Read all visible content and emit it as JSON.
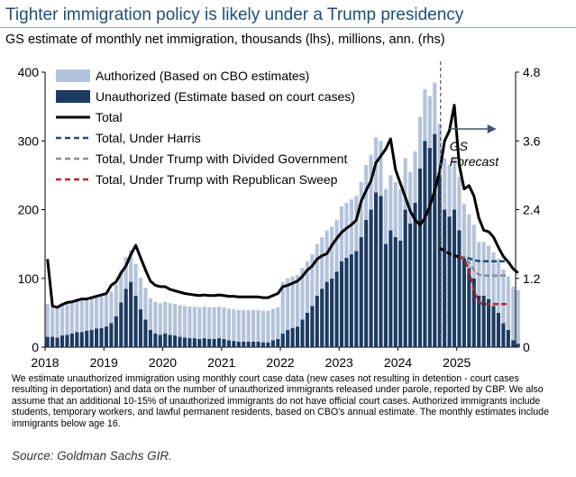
{
  "header": {
    "title": "Tighter immigration policy is likely under a Trump presidency",
    "subtitle": "GS estimate of monthly net immigration, thousands (lhs), millions, ann. (rhs)"
  },
  "footer": {
    "note": "We estimate unauthorized immigration using monthly court case data (new cases not resulting in detention - court cases resulting in deportation) and data on the number of unauthorized immigrants released under parole, reported by CBP. We also assume that an additional 10-15% of unauthorized immigrants do not have official court cases. Authorized immigrants include students, temporary workers, and lawful permanent residents, based on CBO's annual estimate. The monthly estimates include immigrants below age 16.",
    "source": "Source: Goldman Sachs GIR."
  },
  "chart_data": {
    "type": "bar",
    "title": "Tighter immigration policy is likely under a Trump presidency",
    "subtitle": "GS estimate of monthly net immigration, thousands (lhs), millions, ann. (rhs)",
    "x_start": "2018-01",
    "x_end": "2025-12",
    "xticks": [
      "2018",
      "2019",
      "2020",
      "2021",
      "2022",
      "2023",
      "2024",
      "2025"
    ],
    "ylim_left": [
      0,
      400
    ],
    "yticks_left": [
      "0",
      "100",
      "200",
      "300",
      "400"
    ],
    "ylim_right": [
      0,
      4.8
    ],
    "yticks_right": [
      "0",
      "1.2",
      "2.4",
      "3.6",
      "4.8"
    ],
    "annotation": {
      "text_line1": "GS",
      "text_line2": "Forecast",
      "date": "2024-09"
    },
    "colors": {
      "authorized": "#b4c3dc",
      "unauthorized": "#1c3a62",
      "total": "#000000",
      "harris": "#1f4e79",
      "trump_divided": "#8c8c8c",
      "trump_sweep": "#b02a2a"
    },
    "legend": [
      {
        "label": "Authorized (Based on CBO estimates)",
        "style": "fill",
        "color": "#b4c3dc"
      },
      {
        "label": "Unauthorized (Estimate based on court cases)",
        "style": "fill",
        "color": "#1c3a62"
      },
      {
        "label": "Total",
        "style": "line",
        "color": "#000000"
      },
      {
        "label": "Total, Under Harris",
        "style": "dash",
        "color": "#1f4e79"
      },
      {
        "label": "Total, Under Trump with Divided Government",
        "style": "dash",
        "color": "#8c8c8c"
      },
      {
        "label": "Total, Under Trump with Republican Sweep",
        "style": "dash",
        "color": "#b02a2a"
      }
    ],
    "bars_start": "2018-01",
    "authorized": [
      48,
      46,
      46,
      46,
      46,
      46,
      46,
      46,
      46,
      46,
      46,
      46,
      46,
      46,
      46,
      46,
      46,
      46,
      46,
      46,
      46,
      46,
      46,
      46,
      46,
      46,
      46,
      46,
      46,
      46,
      46,
      46,
      46,
      46,
      46,
      46,
      46,
      46,
      46,
      46,
      46,
      46,
      46,
      46,
      46,
      46,
      46,
      46,
      75,
      75,
      75,
      75,
      75,
      75,
      75,
      75,
      75,
      75,
      75,
      75,
      80,
      80,
      80,
      80,
      80,
      80,
      80,
      80,
      80,
      80,
      80,
      80,
      75,
      75,
      75,
      75,
      75,
      75,
      75,
      75,
      75,
      75,
      75,
      75,
      78,
      78,
      78,
      78,
      78,
      78,
      78,
      78,
      78,
      78,
      78,
      78,
      78
    ],
    "unauthorized": [
      15,
      15,
      14,
      17,
      18,
      20,
      22,
      22,
      24,
      25,
      27,
      28,
      30,
      35,
      45,
      65,
      85,
      95,
      75,
      55,
      40,
      25,
      20,
      18,
      20,
      18,
      17,
      15,
      14,
      13,
      13,
      12,
      13,
      12,
      12,
      13,
      12,
      10,
      9,
      8,
      8,
      8,
      8,
      8,
      7,
      7,
      10,
      12,
      20,
      25,
      28,
      30,
      40,
      50,
      60,
      75,
      85,
      95,
      100,
      110,
      125,
      130,
      135,
      140,
      160,
      185,
      200,
      225,
      220,
      150,
      170,
      160,
      155,
      200,
      180,
      210,
      260,
      300,
      290,
      310,
      250,
      200,
      190,
      200,
      170,
      130,
      115,
      100,
      75,
      75,
      70,
      60,
      50,
      35,
      25,
      10,
      5
    ],
    "total_monthly": [
      128,
      60,
      58,
      62,
      65,
      66,
      68,
      70,
      70,
      72,
      74,
      76,
      78,
      90,
      95,
      108,
      118,
      135,
      148,
      130,
      112,
      96,
      90,
      88,
      88,
      84,
      82,
      80,
      78,
      77,
      76,
      75,
      76,
      75,
      75,
      76,
      75,
      74,
      74,
      73,
      73,
      73,
      73,
      73,
      72,
      72,
      75,
      78,
      88,
      90,
      93,
      96,
      103,
      112,
      118,
      128,
      133,
      136,
      148,
      158,
      167,
      173,
      178,
      185,
      212,
      228,
      242,
      268,
      278,
      288,
      303,
      258,
      238,
      218,
      198,
      185,
      178,
      188,
      205,
      228,
      255,
      300,
      315,
      352,
      265,
      230,
      235,
      220,
      188,
      170,
      168,
      160,
      145,
      132,
      124,
      114,
      108
    ],
    "total_monthly_dates": "2018-01 to 2024-09",
    "total_tail_annual_millions": [
      {
        "date": "2024-09",
        "value": 1.73
      },
      {
        "date": "2024-11",
        "value": 1.63
      },
      {
        "date": "2025-01",
        "value": 1.57
      }
    ],
    "scenarios": [
      {
        "name": "Total, Under Harris",
        "start": "2025-01",
        "start_value": 1.57,
        "end_value": 1.5
      },
      {
        "name": "Total, Under Trump with Divided Government",
        "start": "2025-01",
        "start_value": 1.57,
        "end_value": 1.25
      },
      {
        "name": "Total, Under Trump with Republican Sweep",
        "start": "2025-01",
        "start_value": 1.57,
        "end_value": 0.75
      }
    ]
  }
}
